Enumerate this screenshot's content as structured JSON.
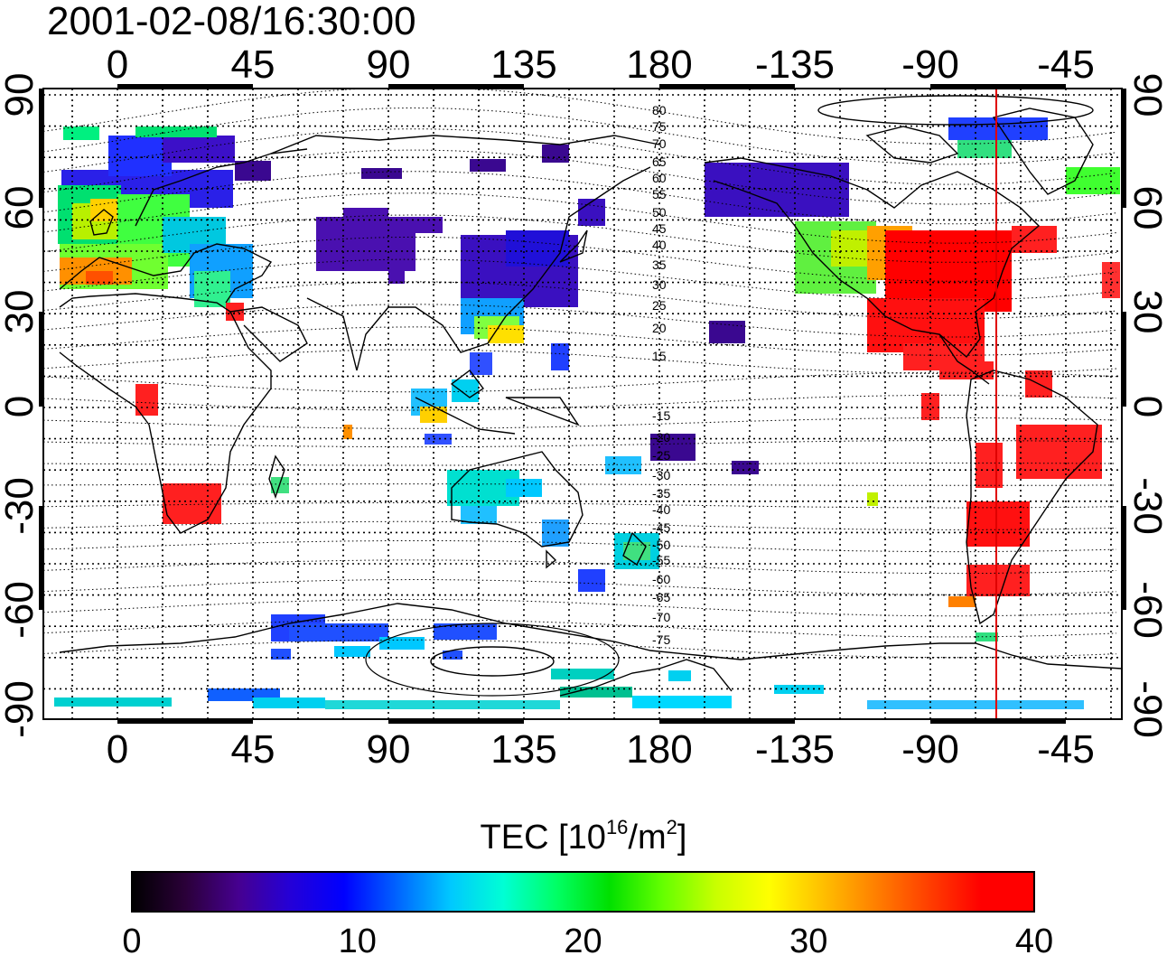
{
  "timestamp": "2001-02-08/16:30:00",
  "map": {
    "projection": "cylindrical",
    "lon_ticks": [
      "0",
      "45",
      "90",
      "135",
      "180",
      "-135",
      "-90",
      "-45"
    ],
    "lat_ticks": [
      "90",
      "60",
      "30",
      "0",
      "-30",
      "-60",
      "-90"
    ],
    "mlat_labels": [
      "80",
      "75",
      "70",
      "65",
      "60",
      "55",
      "50",
      "45",
      "40",
      "35",
      "30",
      "25",
      "20",
      "15",
      "-15",
      "-20",
      "-25",
      "-30",
      "-35",
      "-40",
      "-45",
      "-50",
      "-55",
      "-60",
      "-65",
      "-70",
      "-75"
    ],
    "grid": true,
    "sunline_color": "#e00000",
    "coastline_color": "#000000"
  },
  "colorbar": {
    "title_main": "TEC  [10",
    "title_exp1": "16",
    "title_mid": "/m",
    "title_exp2": "2",
    "title_end": "]",
    "min": 0,
    "max": 40,
    "tick_labels": [
      "0",
      "10",
      "20",
      "30",
      "40"
    ],
    "colors": [
      "#000000",
      "#2a0038",
      "#460090",
      "#2400d8",
      "#0000ff",
      "#0064ff",
      "#00c8ff",
      "#00ffd4",
      "#00ff64",
      "#00e000",
      "#64ff00",
      "#c8ff00",
      "#ffff00",
      "#ffc000",
      "#ff8000",
      "#ff4000",
      "#ff0000",
      "#ff0000"
    ]
  }
}
